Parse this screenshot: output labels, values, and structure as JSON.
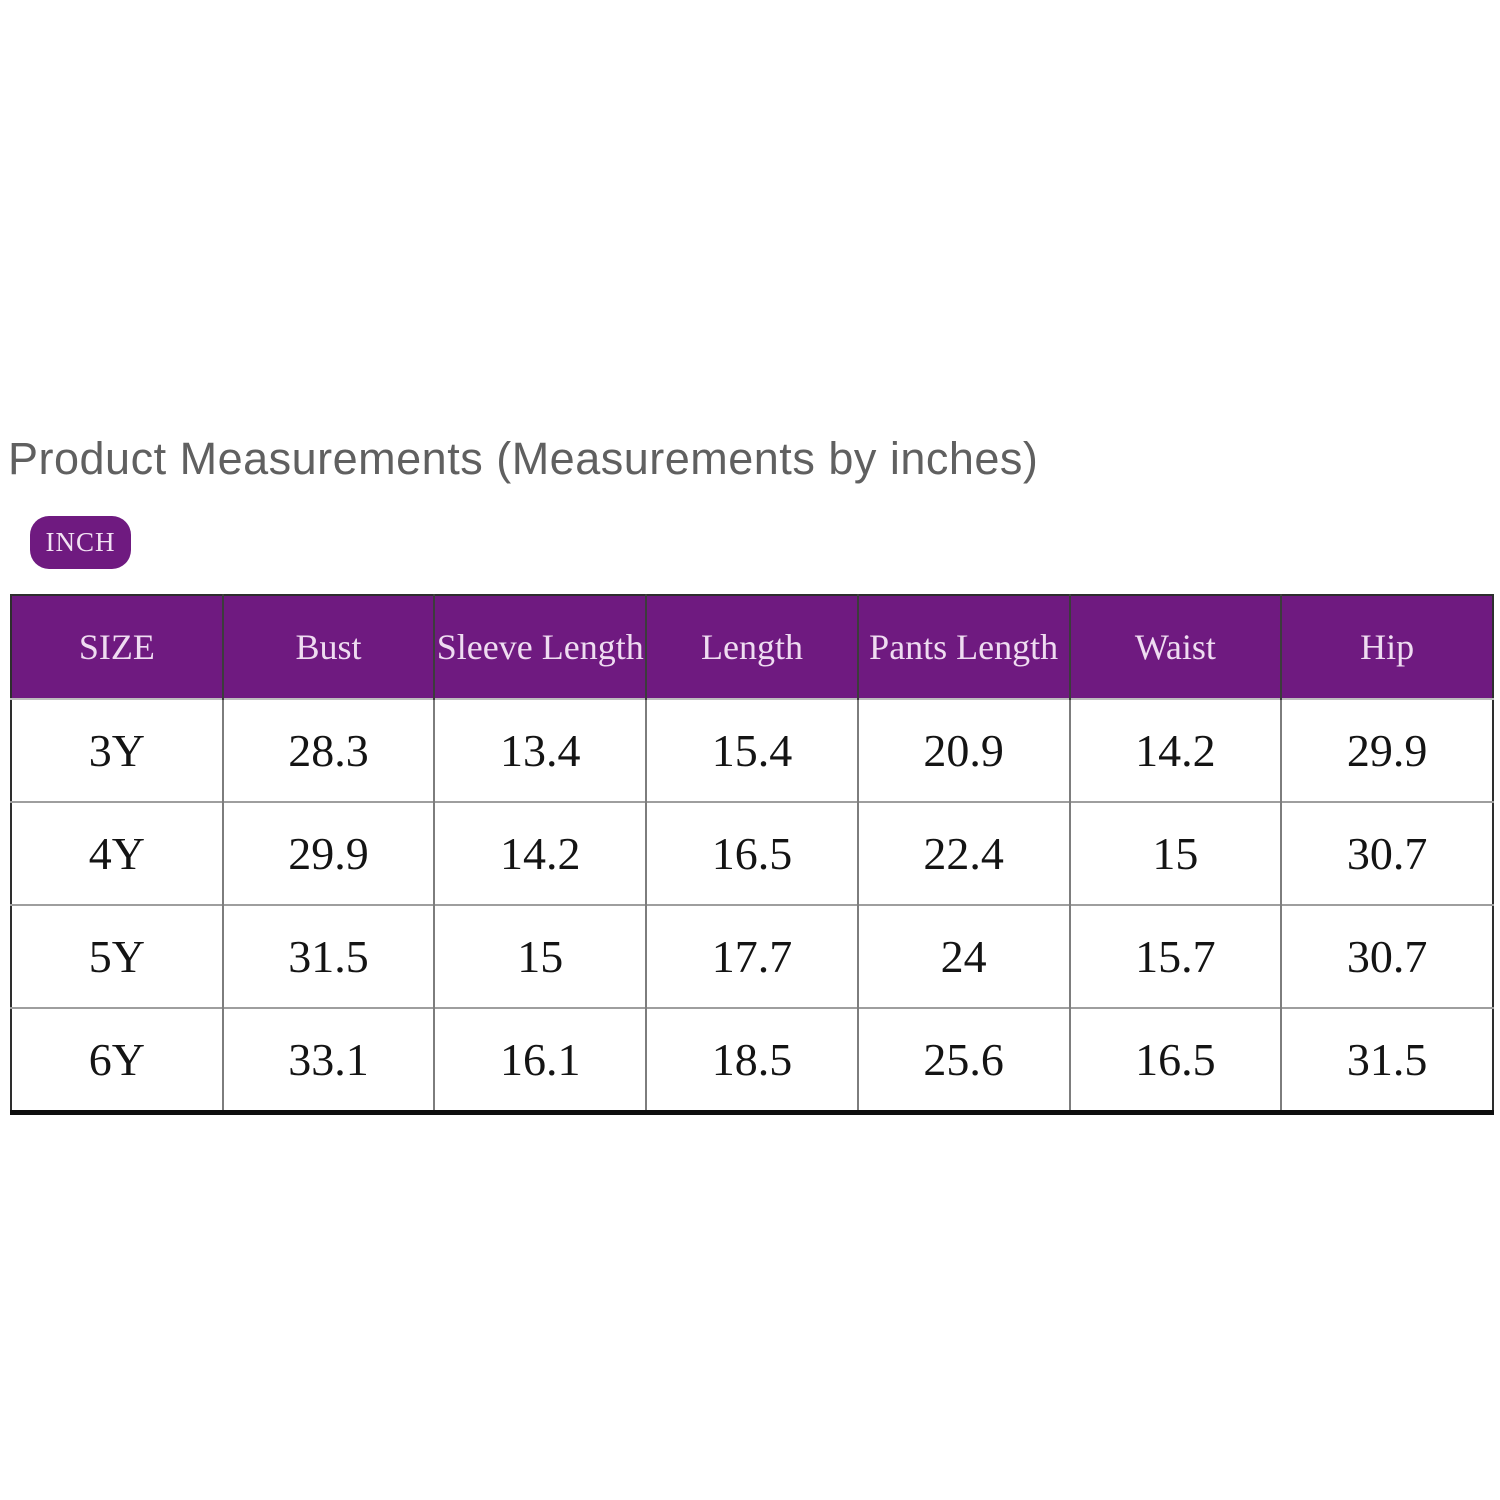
{
  "title": "Product Measurements (Measurements by inches)",
  "unit_badge": {
    "label": "INCH"
  },
  "colors": {
    "accent_purple": "#6F1A80",
    "header_text_pink": "#EFDCF1",
    "title_gray": "#606060",
    "table_border_dark": "#2e2e2e",
    "body_text": "#141414"
  },
  "chart_data": {
    "type": "table",
    "title": "Product Measurements (Measurements by inches)",
    "unit": "INCH",
    "columns": [
      "SIZE",
      "Bust",
      "Sleeve Length",
      "Length",
      "Pants Length",
      "Waist",
      "Hip"
    ],
    "rows": [
      [
        "3Y",
        "28.3",
        "13.4",
        "15.4",
        "20.9",
        "14.2",
        "29.9"
      ],
      [
        "4Y",
        "29.9",
        "14.2",
        "16.5",
        "22.4",
        "15",
        "30.7"
      ],
      [
        "5Y",
        "31.5",
        "15",
        "17.7",
        "24",
        "15.7",
        "30.7"
      ],
      [
        "6Y",
        "33.1",
        "16.1",
        "18.5",
        "25.6",
        "16.5",
        "31.5"
      ]
    ]
  }
}
